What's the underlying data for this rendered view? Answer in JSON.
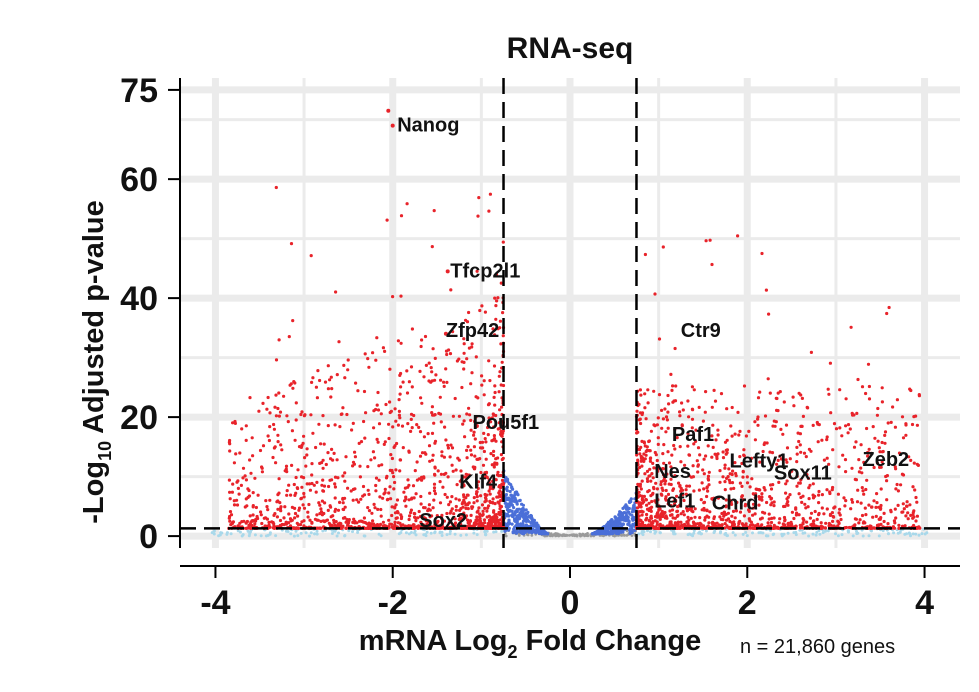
{
  "chart_data": {
    "type": "scatter",
    "title": "RNA-seq",
    "xlabel": {
      "pre": "mRNA Log",
      "sub": "2",
      "post": " Fold Change"
    },
    "ylabel": {
      "pre": "-Log",
      "sub": "10",
      "post": " Adjusted p-value"
    },
    "xlim": [
      -4.4,
      4.4
    ],
    "ylim": [
      -2,
      77
    ],
    "xticks": [
      -4,
      -2,
      0,
      2,
      4
    ],
    "xtick_labels": [
      "-4",
      "-2",
      "0",
      "2",
      "4"
    ],
    "yticks": [
      0,
      20,
      40,
      60,
      75
    ],
    "ytick_labels": [
      "0",
      "20",
      "40",
      "60",
      "75"
    ],
    "grid": true,
    "thresholds": {
      "log2fc": [
        -0.75,
        0.75
      ],
      "neg_log10_padj": 1.3
    },
    "colors": {
      "significant": "#e8232a",
      "fold_only": "#4b6fd8",
      "p_only": "#a8d8ea",
      "not_significant": "#9a9a9a",
      "grid": "#ebebeb",
      "threshold_line": "#000000"
    },
    "annotations": [
      {
        "gene": "Nanog",
        "x": -1.95,
        "y": 68.0
      },
      {
        "gene": "Tfcp2l1",
        "x": -1.35,
        "y": 43.5
      },
      {
        "gene": "Zfp42",
        "x": -1.4,
        "y": 33.5
      },
      {
        "gene": "Pou5f1",
        "x": -1.1,
        "y": 18.0
      },
      {
        "gene": "Klf4",
        "x": -1.25,
        "y": 8.0
      },
      {
        "gene": "Sox2",
        "x": -1.7,
        "y": 1.5
      },
      {
        "gene": "Ctr9",
        "x": 1.25,
        "y": 33.5
      },
      {
        "gene": "Paf1",
        "x": 1.15,
        "y": 16.0
      },
      {
        "gene": "Nes",
        "x": 0.95,
        "y": 9.8
      },
      {
        "gene": "Lefty1",
        "x": 1.8,
        "y": 11.5
      },
      {
        "gene": "Sox11",
        "x": 2.3,
        "y": 9.5
      },
      {
        "gene": "Zeb2",
        "x": 3.3,
        "y": 11.8
      },
      {
        "gene": "Lef1",
        "x": 0.95,
        "y": 4.8
      },
      {
        "gene": "Chrd",
        "x": 1.6,
        "y": 4.5
      }
    ],
    "highlight_points": [
      {
        "x": -2.0,
        "y": 69.0
      },
      {
        "x": -2.05,
        "y": 71.5
      },
      {
        "x": -1.38,
        "y": 44.5
      },
      {
        "x": -1.4,
        "y": 34.0
      },
      {
        "x": -1.05,
        "y": 18.5
      },
      {
        "x": -1.2,
        "y": 8.5
      }
    ],
    "n_genes_note": "n = 21,860 genes"
  }
}
